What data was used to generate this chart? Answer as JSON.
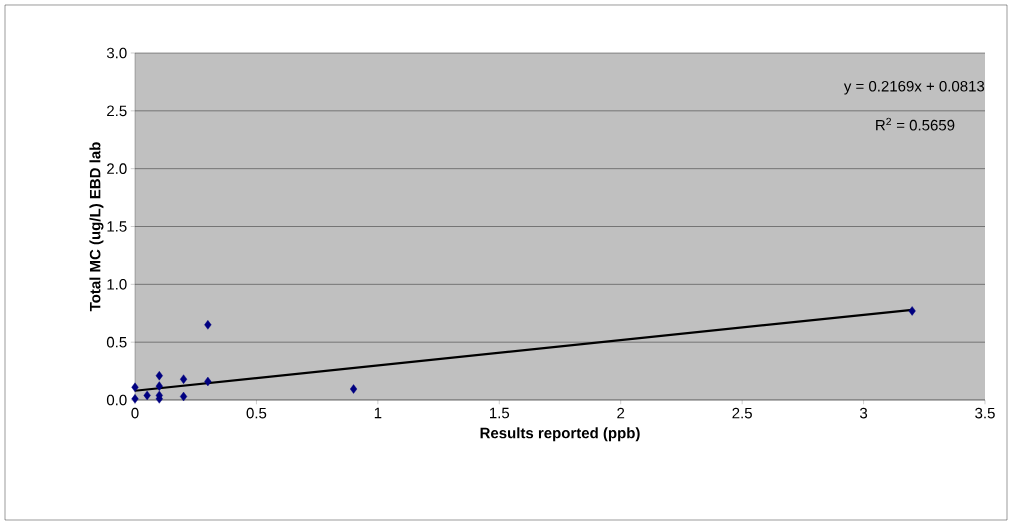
{
  "chart_data": {
    "type": "scatter",
    "xlabel": "Results reported (ppb)",
    "ylabel": "Total MC (ug/L) EBD lab",
    "annotations": [
      "y = 0.2169x + 0.0813",
      "R$^{2}$ = 0.5659"
    ],
    "xlim": [
      0,
      3.5
    ],
    "xticks": [
      0,
      0.5,
      1,
      1.5,
      2,
      2.5,
      3,
      3.5
    ],
    "ylim": [
      0,
      3.0
    ],
    "yticks": [
      {
        "value": 0,
        "label": "0.0"
      },
      {
        "value": 0.5,
        "label": "0.5"
      },
      {
        "value": 1,
        "label": "1.0"
      },
      {
        "value": 1.5,
        "label": "1.5"
      },
      {
        "value": 2,
        "label": "2.0"
      },
      {
        "value": 2.5,
        "label": "2.5"
      },
      {
        "value": 3,
        "label": "3.0"
      }
    ],
    "grid": "y",
    "marker": "diamond",
    "series": [
      {
        "color": "#000080",
        "x": [
          0,
          0,
          0.05,
          0.1,
          0.1,
          0.1,
          0.1,
          0.2,
          0.2,
          0.3,
          0.3,
          0.9,
          3.2
        ],
        "values": [
          0.11,
          0.01,
          0.04,
          0.21,
          0.12,
          0.01,
          0.04,
          0.18,
          0.03,
          0.65,
          0.16,
          0.095,
          0.77
        ]
      },
      {
        "type": "line",
        "color": "#000000",
        "marker": "none",
        "x": [
          0,
          3.2
        ],
        "values": [
          0.08,
          0.78
        ]
      }
    ]
  }
}
